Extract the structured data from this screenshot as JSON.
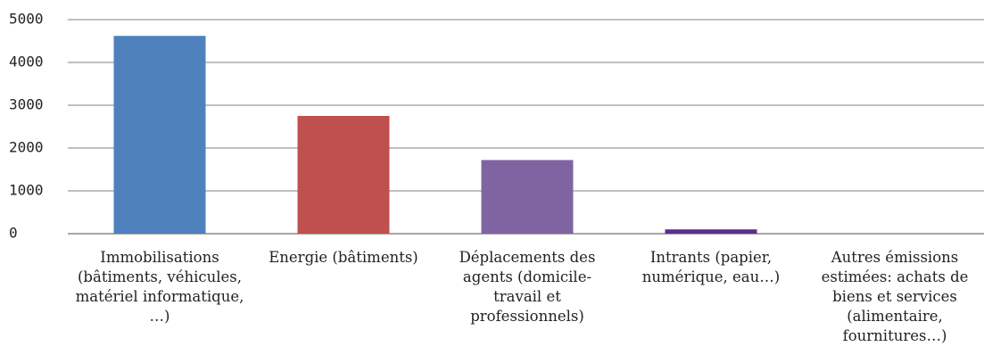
{
  "chart_data": {
    "type": "bar",
    "categories": [
      "Immobilisations (bâtiments, véhicules, matériel informatique, …)",
      "Energie (bâtiments)",
      "Déplacements des agents (domicile-travail et professionnels)",
      "Intrants (papier, numérique, eau…)",
      "Autres émissions estimées: achats de biens et services (alimentaire, fournitures…)"
    ],
    "values": [
      4620,
      2750,
      1720,
      100,
      0
    ],
    "colors": [
      "#4f81bd",
      "#c0504d",
      "#8064a2",
      "#5b2d8e",
      "#4f81bd"
    ],
    "ylim": [
      0,
      5000
    ],
    "yticks": [
      0,
      1000,
      2000,
      3000,
      4000,
      5000
    ],
    "grid": true
  }
}
